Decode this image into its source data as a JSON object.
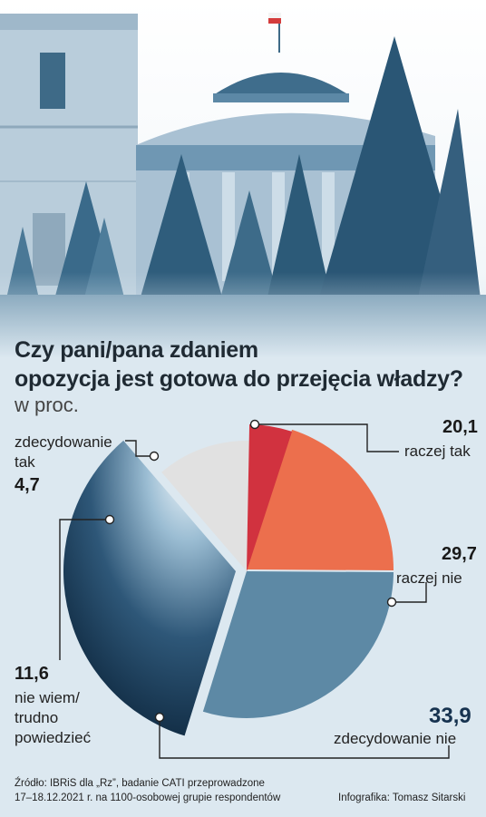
{
  "header": {
    "title_line1": "Czy pani/pana zdaniem",
    "title_line2": "opozycja jest gotowa do przejęcia władzy?",
    "unit": "w proc."
  },
  "chart_data": {
    "type": "pie",
    "title": "Czy pani/pana zdaniem opozycja jest gotowa do przejęcia władzy?",
    "unit": "w proc.",
    "slices": [
      {
        "label": "raczej tak",
        "value": 20.1,
        "value_text": "20,1",
        "color": "#ec6f4d"
      },
      {
        "label": "raczej nie",
        "value": 29.7,
        "value_text": "29,7",
        "color": "#5d89a5"
      },
      {
        "label": "zdecydowanie nie",
        "value": 33.9,
        "value_text": "33,9",
        "color": "#16324f"
      },
      {
        "label": "nie wiem/ trudno powiedzieć",
        "value": 11.6,
        "value_text": "11,6",
        "color": "#e1e1e1"
      },
      {
        "label": "zdecydowanie tak",
        "value": 4.7,
        "value_text": "4,7",
        "color": "#d1323f"
      }
    ]
  },
  "labels": {
    "raczej_tak_value": "20,1",
    "raczej_tak": "raczej tak",
    "raczej_nie_value": "29,7",
    "raczej_nie": "raczej nie",
    "zdec_nie_value": "33,9",
    "zdec_nie": "zdecydowanie nie",
    "nie_wiem_value": "11,6",
    "nie_wiem_l1": "nie wiem/",
    "nie_wiem_l2": "trudno",
    "nie_wiem_l3": "powiedzieć",
    "zdec_tak_l1": "zdecydowanie",
    "zdec_tak_l2": "tak",
    "zdec_tak_value": "4,7"
  },
  "footer": {
    "source_line1": "Źródło: IBRiS dla „Rz”, badanie CATI przeprowadzone",
    "source_line2": "17–18.12.2021 r. na 1100-osobowej grupie respondentów",
    "credit": "Infografika: Tomasz Sitarski"
  },
  "colors": {
    "background": "#dce8f0",
    "photo_tint": "#2c5a78"
  }
}
